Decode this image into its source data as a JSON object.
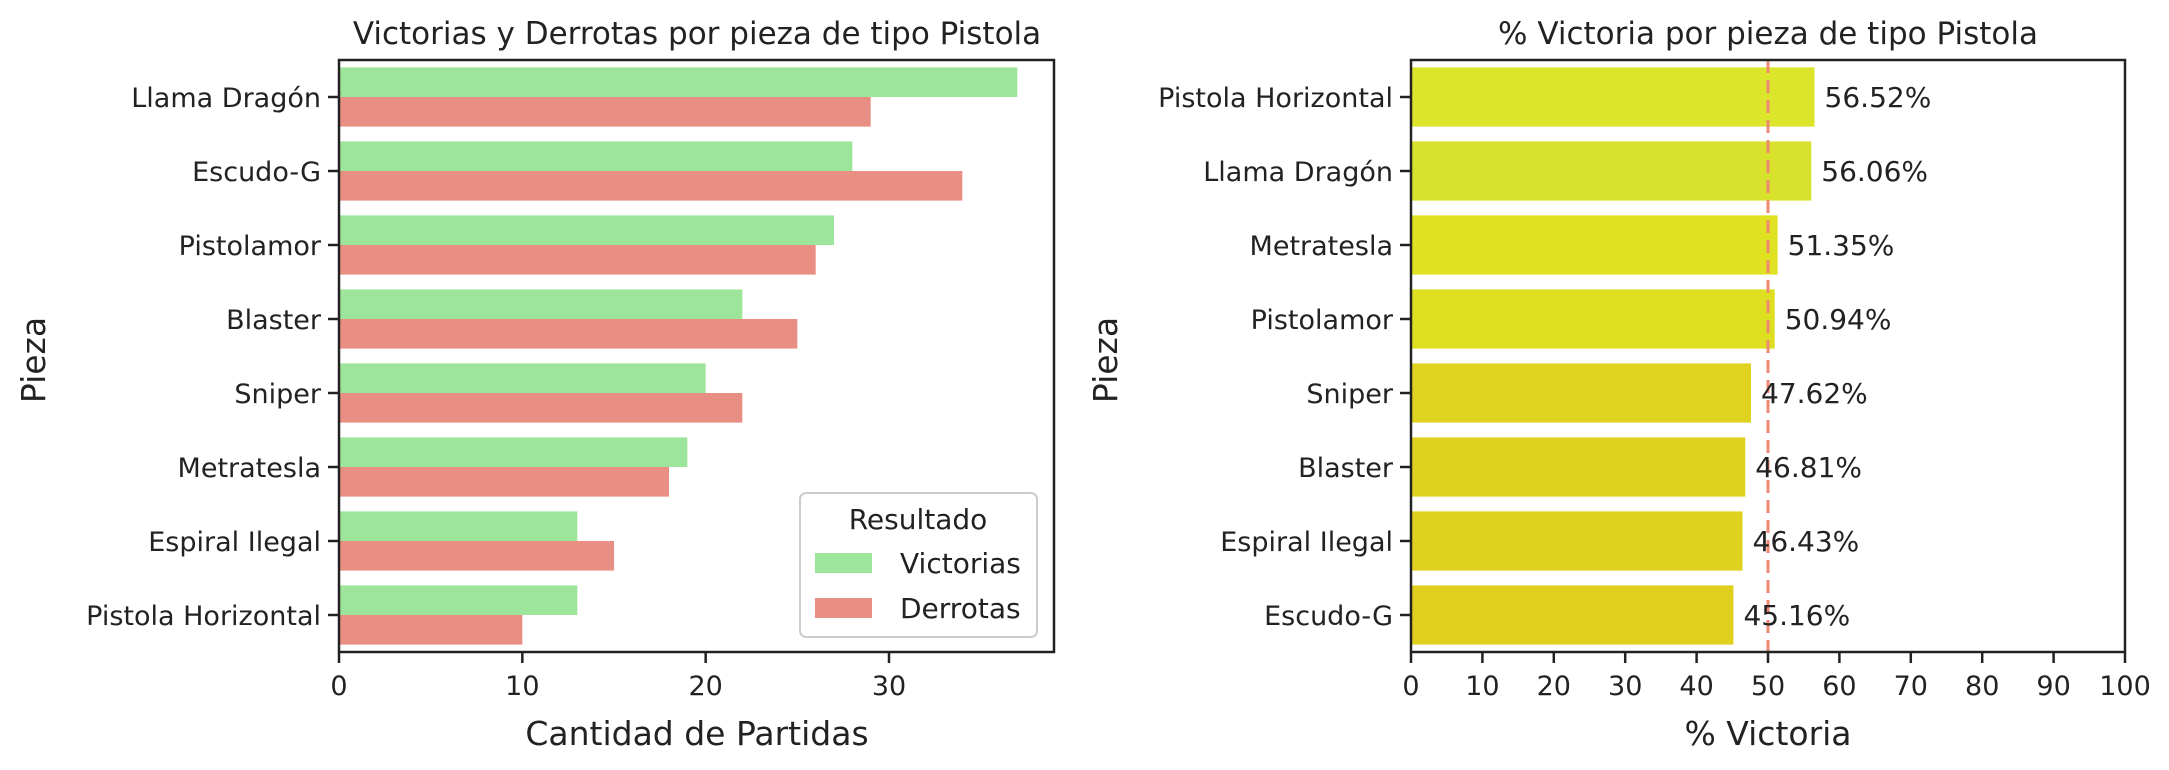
{
  "chart_data": [
    {
      "type": "bar",
      "orientation": "horizontal",
      "title": "Victorias y Derrotas por pieza de tipo Pistola",
      "xlabel": "Cantidad de Partidas",
      "ylabel": "Pieza",
      "categories": [
        "Llama Dragón",
        "Escudo-G",
        "Pistolamor",
        "Blaster",
        "Sniper",
        "Metratesla",
        "Espiral Ilegal",
        "Pistola Horizontal"
      ],
      "series": [
        {
          "name": "Victorias",
          "color": "#9de59a",
          "values": [
            37,
            28,
            27,
            22,
            20,
            19,
            13,
            13
          ]
        },
        {
          "name": "Derrotas",
          "color": "#e98e83",
          "values": [
            29,
            34,
            26,
            25,
            22,
            18,
            15,
            10
          ]
        }
      ],
      "xlim": [
        0,
        39
      ],
      "xticks": [
        0,
        10,
        20,
        30
      ],
      "grid": false,
      "legend": {
        "title": "Resultado",
        "placement": "lower-right"
      }
    },
    {
      "type": "bar",
      "orientation": "horizontal",
      "title": "% Victoria por pieza de tipo Pistola",
      "xlabel": "% Victoria",
      "ylabel": "Pieza",
      "categories": [
        "Pistola Horizontal",
        "Llama Dragón",
        "Metratesla",
        "Pistolamor",
        "Sniper",
        "Blaster",
        "Espiral Ilegal",
        "Escudo-G"
      ],
      "values": [
        56.52,
        56.06,
        51.35,
        50.94,
        47.62,
        46.81,
        46.43,
        45.16
      ],
      "data_labels": [
        "56.52%",
        "56.06%",
        "51.35%",
        "50.94%",
        "47.62%",
        "46.81%",
        "46.43%",
        "45.16%"
      ],
      "colors": [
        "#dce52c",
        "#d8e22d",
        "#dfe121",
        "#dfdf22",
        "#e0d31f",
        "#dfd21f",
        "#dfd11f",
        "#dfd01e"
      ],
      "xlim": [
        0,
        100
      ],
      "xticks": [
        0,
        10,
        20,
        30,
        40,
        50,
        60,
        70,
        80,
        90,
        100
      ],
      "reference_line": {
        "x": 50,
        "style": "dashed",
        "color": "#ee8870"
      },
      "grid": false
    }
  ]
}
